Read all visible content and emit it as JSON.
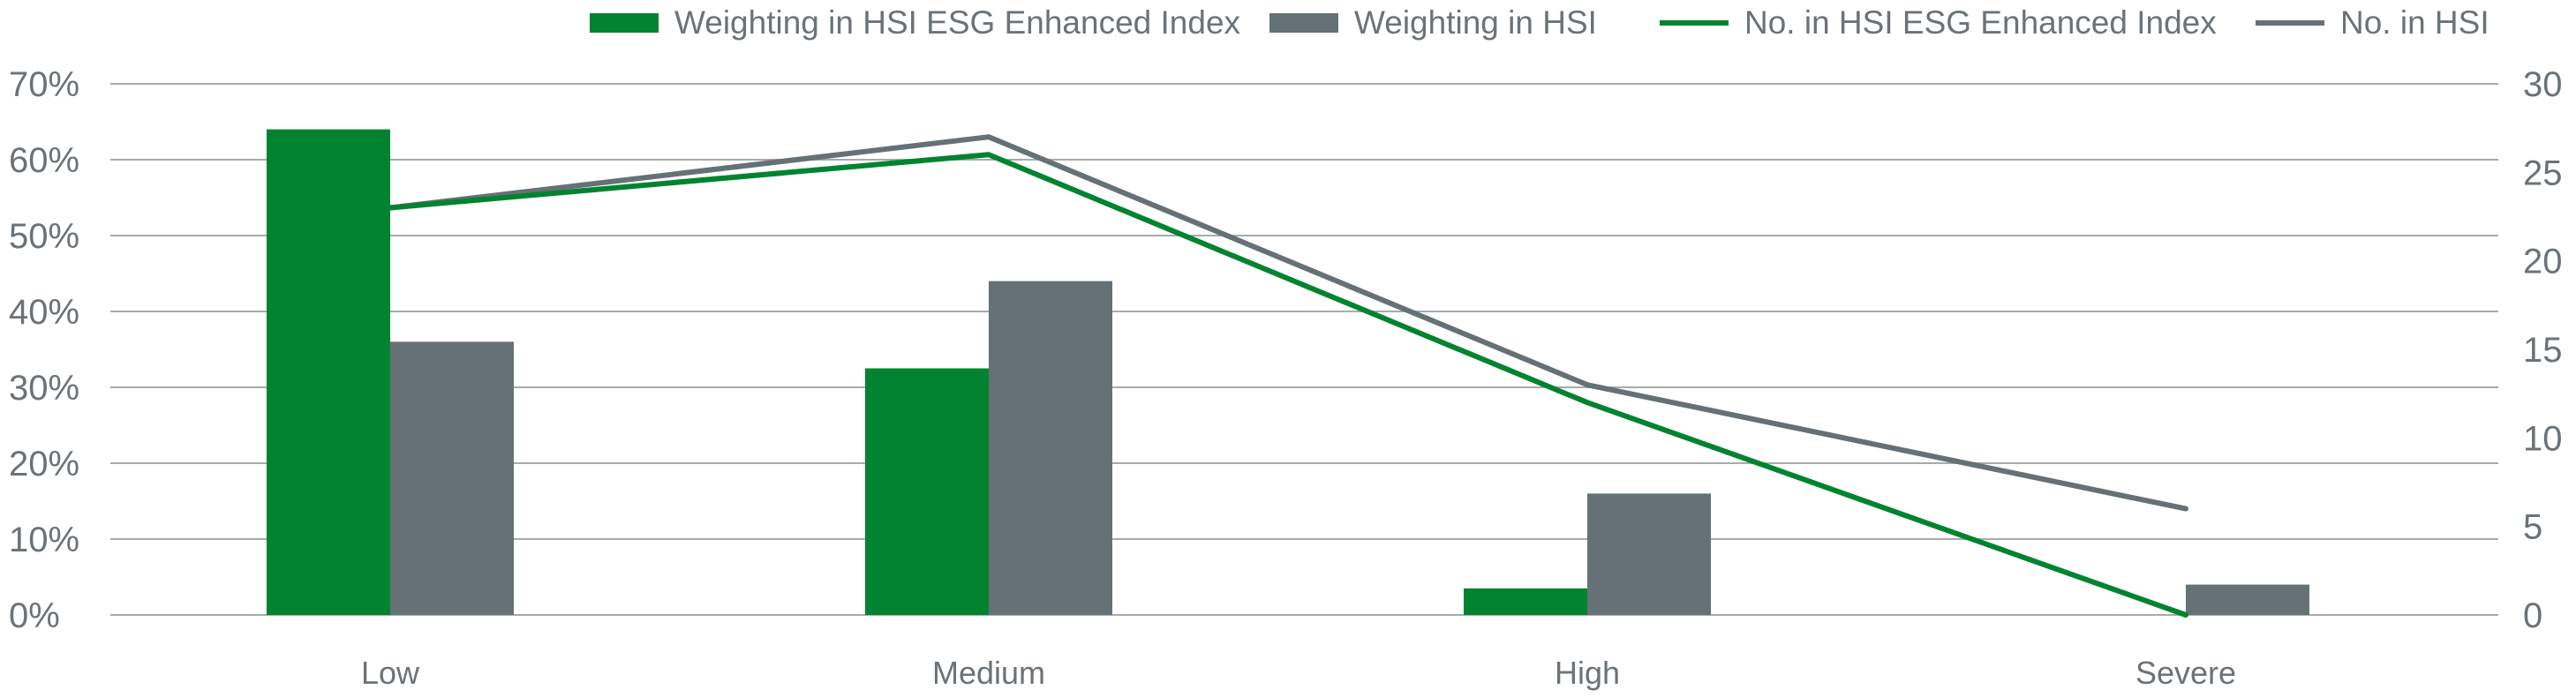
{
  "chart_data": {
    "type": "bar",
    "categories": [
      "Low",
      "Medium",
      "High",
      "Severe"
    ],
    "series": [
      {
        "name": "Weighting in HSI ESG Enhanced Index",
        "kind": "bar",
        "axis": "left",
        "color": "#02832f",
        "values": [
          64,
          32.5,
          3.5,
          0
        ]
      },
      {
        "name": "Weighting in HSI",
        "kind": "bar",
        "axis": "left",
        "color": "#667176",
        "values": [
          36,
          44,
          16,
          4
        ]
      },
      {
        "name": "No. in HSI ESG Enhanced Index",
        "kind": "line",
        "axis": "right",
        "color": "#02832f",
        "values": [
          23,
          26,
          12,
          0
        ]
      },
      {
        "name": "No. in HSI",
        "kind": "line",
        "axis": "right",
        "color": "#667176",
        "values": [
          23,
          27,
          13,
          6
        ]
      }
    ],
    "left_axis": {
      "min": 0,
      "max": 70,
      "step": 10,
      "tick_labels": [
        "0%",
        "10%",
        "20%",
        "30%",
        "40%",
        "50%",
        "60%",
        "70%"
      ]
    },
    "right_axis": {
      "min": 0,
      "max": 30,
      "step": 5,
      "tick_labels": [
        "0",
        "5",
        "10",
        "15",
        "20",
        "25",
        "30"
      ]
    },
    "grid": true,
    "gridline_color": "#a6abad",
    "legend_position": "top-right"
  }
}
